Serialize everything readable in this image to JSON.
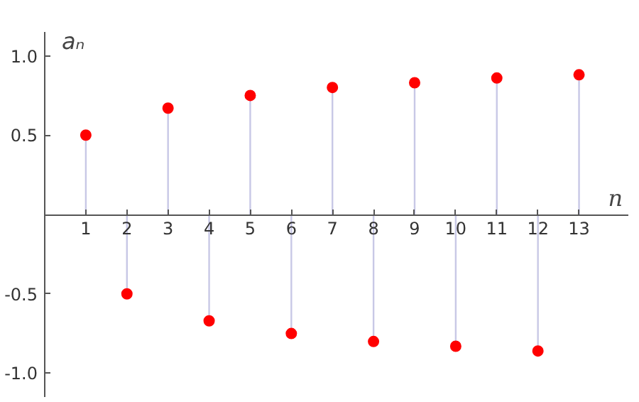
{
  "chart_data": {
    "type": "lollipop",
    "xlabel": "n",
    "ylabel": "aₙ",
    "x": [
      1,
      2,
      3,
      4,
      5,
      6,
      7,
      8,
      9,
      10,
      11,
      12,
      13
    ],
    "series": [
      {
        "color": "#ff0000",
        "values": [
          0.5,
          -0.5,
          0.67,
          -0.67,
          0.75,
          -0.75,
          0.8,
          -0.8,
          0.83,
          -0.83,
          0.86,
          -0.86,
          0.88
        ]
      }
    ],
    "xlim": [
      0,
      14.2
    ],
    "ylim": [
      -1.15,
      1.15
    ],
    "xticks": [
      1,
      2,
      3,
      4,
      5,
      6,
      7,
      8,
      9,
      10,
      11,
      12,
      13
    ],
    "yticks": [
      {
        "value": -1,
        "label": "-1.0"
      },
      {
        "value": -0.5,
        "label": "-0.5"
      },
      {
        "value": 0.5,
        "label": "0.5"
      },
      {
        "value": 1,
        "label": "1.0"
      }
    ],
    "grid": false,
    "marker": "circle"
  }
}
